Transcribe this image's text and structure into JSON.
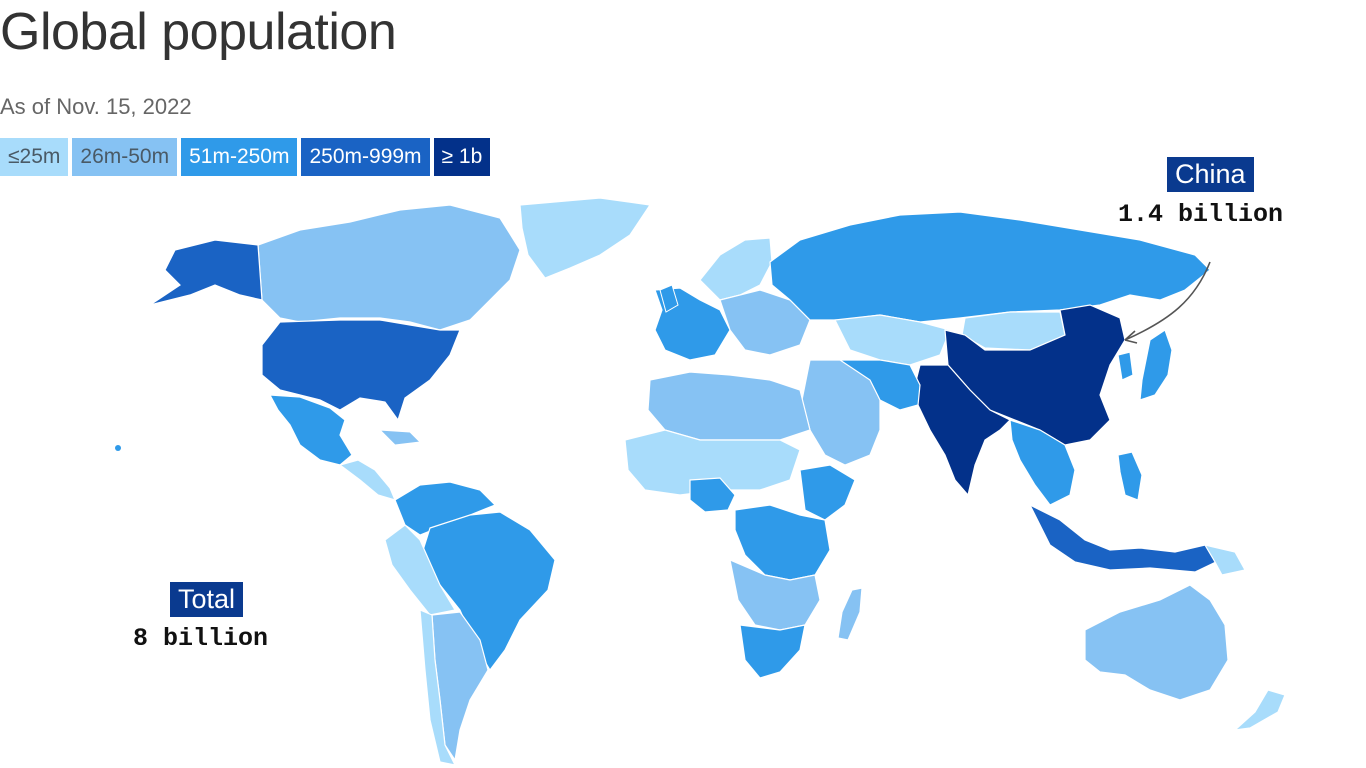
{
  "title": "Global population",
  "subtitle": "As of Nov. 15, 2022",
  "legend": [
    {
      "label": "≤25m",
      "color": "#a8dcfb",
      "text_color": "#4a5a66"
    },
    {
      "label": "26m-50m",
      "color": "#86c2f3",
      "text_color": "#4a5a66"
    },
    {
      "label": "51m-250m",
      "color": "#2f9ae9",
      "text_color": "#ffffff"
    },
    {
      "label": "250m-999m",
      "color": "#1a63c4",
      "text_color": "#ffffff"
    },
    {
      "label": "≥ 1b",
      "color": "#03318a",
      "text_color": "#ffffff"
    }
  ],
  "callouts": {
    "china": {
      "label": "China",
      "value": "1.4 billion"
    },
    "total": {
      "label": "Total",
      "value": "8 billion"
    }
  },
  "map": {
    "regions": [
      {
        "name": "canada",
        "category": "26m-50m"
      },
      {
        "name": "greenland",
        "category": "≤25m"
      },
      {
        "name": "alaska",
        "category": "250m-999m"
      },
      {
        "name": "usa",
        "category": "250m-999m"
      },
      {
        "name": "mexico",
        "category": "51m-250m"
      },
      {
        "name": "central-america",
        "category": "≤25m"
      },
      {
        "name": "colombia-venezuela",
        "category": "51m-250m"
      },
      {
        "name": "brazil",
        "category": "51m-250m"
      },
      {
        "name": "peru-bolivia",
        "category": "≤25m"
      },
      {
        "name": "argentina",
        "category": "26m-50m"
      },
      {
        "name": "chile",
        "category": "≤25m"
      },
      {
        "name": "western-europe",
        "category": "51m-250m"
      },
      {
        "name": "scandinavia",
        "category": "≤25m"
      },
      {
        "name": "eastern-europe",
        "category": "26m-50m"
      },
      {
        "name": "russia",
        "category": "51m-250m"
      },
      {
        "name": "kazakhstan-central-asia",
        "category": "≤25m"
      },
      {
        "name": "mongolia",
        "category": "≤25m"
      },
      {
        "name": "china",
        "category": "≥ 1b"
      },
      {
        "name": "india",
        "category": "≥ 1b"
      },
      {
        "name": "middle-east",
        "category": "26m-50m"
      },
      {
        "name": "iran-pakistan",
        "category": "51m-250m"
      },
      {
        "name": "north-africa",
        "category": "26m-50m"
      },
      {
        "name": "sahel",
        "category": "≤25m"
      },
      {
        "name": "nigeria-ethiopia",
        "category": "51m-250m"
      },
      {
        "name": "central-africa",
        "category": "51m-250m"
      },
      {
        "name": "southern-africa",
        "category": "26m-50m"
      },
      {
        "name": "south-africa",
        "category": "51m-250m"
      },
      {
        "name": "madagascar",
        "category": "26m-50m"
      },
      {
        "name": "southeast-asia",
        "category": "51m-250m"
      },
      {
        "name": "indonesia",
        "category": "250m-999m"
      },
      {
        "name": "japan",
        "category": "51m-250m"
      },
      {
        "name": "australia",
        "category": "26m-50m"
      },
      {
        "name": "new-zealand",
        "category": "≤25m"
      },
      {
        "name": "papua-new-guinea",
        "category": "≤25m"
      }
    ]
  }
}
